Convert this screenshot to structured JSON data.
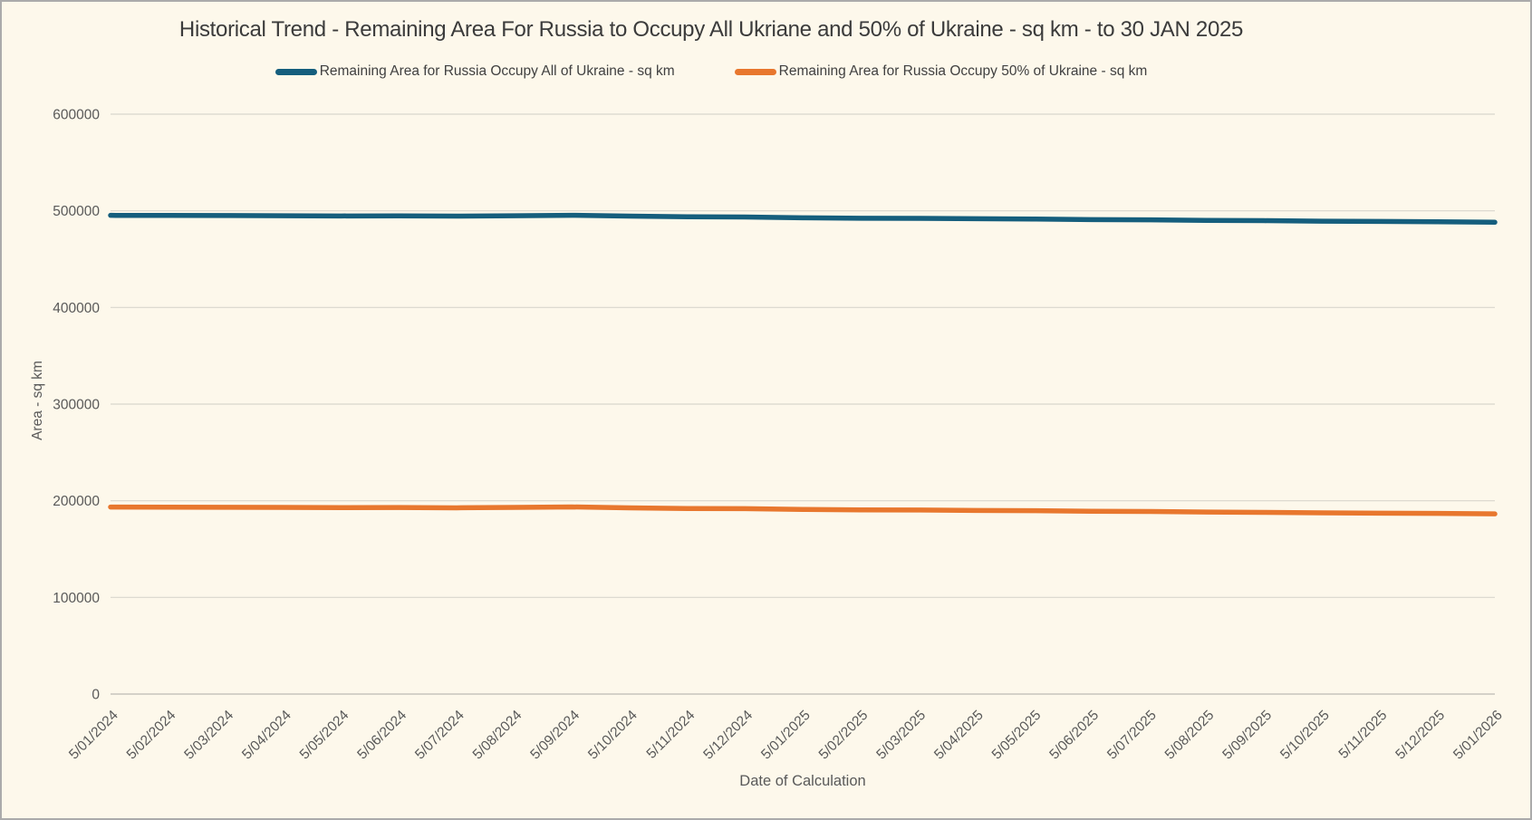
{
  "frame": {
    "background": "#FDF8EB",
    "border_color": "#ABABAB"
  },
  "chart_data": {
    "type": "line",
    "title": "Historical Trend - Remaining Area For Russia to Occupy All Ukriane and 50% of Ukraine - sq km - to 30 JAN 2025",
    "xlabel": "Date of Calculation",
    "ylabel": "Area - sq km",
    "ylim": [
      0,
      600000
    ],
    "y_ticks": [
      0,
      100000,
      200000,
      300000,
      400000,
      500000,
      600000
    ],
    "grid": "horizontal-only",
    "legend_position": "top",
    "categories": [
      "5/01/2024",
      "5/02/2024",
      "5/03/2024",
      "5/04/2024",
      "5/05/2024",
      "5/06/2024",
      "5/07/2024",
      "5/08/2024",
      "5/09/2024",
      "5/10/2024",
      "5/11/2024",
      "5/12/2024",
      "5/01/2025",
      "5/02/2025",
      "5/03/2025",
      "5/04/2025",
      "5/05/2025",
      "5/06/2025",
      "5/07/2025",
      "5/08/2025",
      "5/09/2025",
      "5/10/2025",
      "5/11/2025",
      "5/12/2025",
      "5/01/2026"
    ],
    "series": [
      {
        "name": "Remaining Area for Russia Occupy All of Ukraine - sq km",
        "color": "#155E7D",
        "values": [
          495300,
          495200,
          495100,
          494900,
          494700,
          494800,
          494500,
          494900,
          495400,
          494500,
          493800,
          493600,
          492800,
          492300,
          492200,
          491800,
          491500,
          490900,
          490700,
          490100,
          489800,
          489300,
          489000,
          488700,
          488200
        ]
      },
      {
        "name": "Remaining Area for Russia Occupy 50% of Ukraine - sq km",
        "color": "#E8772E",
        "values": [
          193500,
          193400,
          193300,
          193100,
          192900,
          193000,
          192700,
          193100,
          193600,
          192700,
          192000,
          191800,
          191000,
          190500,
          190400,
          190000,
          189700,
          189100,
          188900,
          188300,
          188000,
          187500,
          187200,
          186900,
          186400
        ]
      }
    ],
    "styles": {
      "gridline_color": "#D8D6CD",
      "axis_line_color": "#C6C4BC",
      "tick_label_color": "#595959",
      "title_color": "#3B3B3B"
    }
  }
}
